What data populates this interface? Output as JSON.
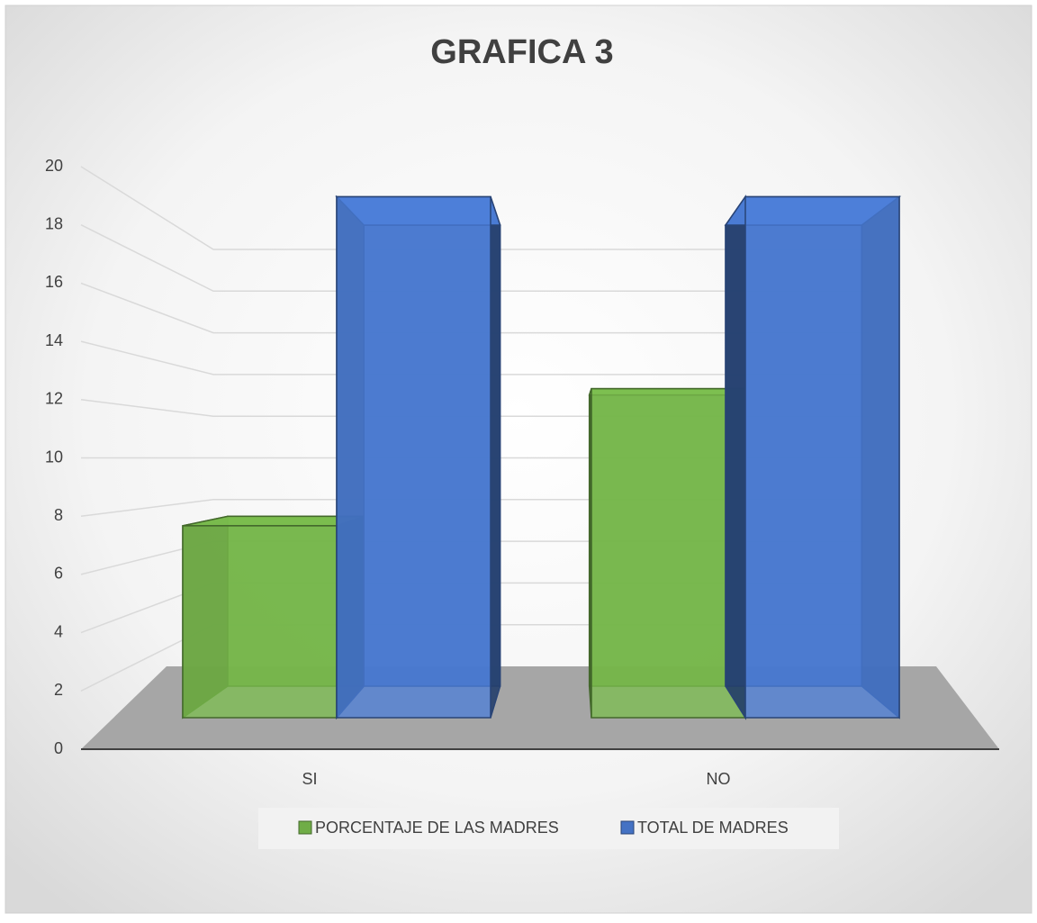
{
  "chart_data": {
    "type": "bar3d",
    "title": "GRAFICA 3",
    "categories": [
      "SI",
      "NO"
    ],
    "series": [
      {
        "name": "PORCENTAJE DE LAS MADRES",
        "color": "#70ad47",
        "values": [
          7,
          12
        ]
      },
      {
        "name": "TOTAL DE MADRES",
        "color": "#4472c4",
        "values": [
          19,
          19
        ]
      }
    ],
    "ylim": [
      0,
      20
    ],
    "yticks": [
      0,
      2,
      4,
      6,
      8,
      10,
      12,
      14,
      16,
      18,
      20
    ],
    "grid": true,
    "legend": "bottom"
  }
}
